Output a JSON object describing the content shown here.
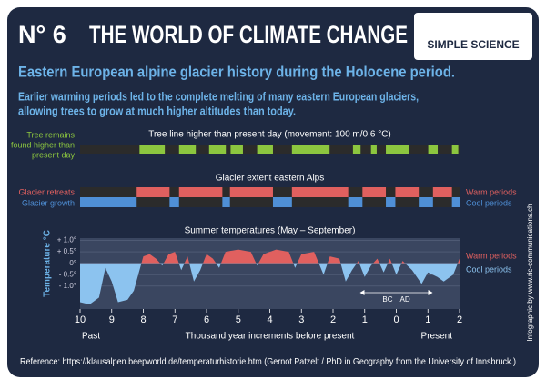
{
  "header": {
    "number": "N° 6",
    "title": "THE WORLD OF CLIMATE CHANGE",
    "logo": "SIMPLE SCIENCE"
  },
  "subtitle": "Eastern European alpine glacier history during the Holocene period.",
  "intro": [
    "Earlier warming periods led to the complete melting of many eastern European glaciers,",
    "allowing trees to grow at much higher altitudes than today."
  ],
  "credit": "Infographic by www.ric-communications.ch",
  "reference": "Reference: https://klausalpen.beepworld.de/temperaturhistorie.htm (Gernot Patzelt / PhD in Geography from the University of Innsbruck.)",
  "chart_data": {
    "type": "area",
    "xlim": [
      0,
      12
    ],
    "xticks": [
      {
        "value": 0,
        "label": "10"
      },
      {
        "value": 1,
        "label": "9"
      },
      {
        "value": 2,
        "label": "8"
      },
      {
        "value": 3,
        "label": "7"
      },
      {
        "value": 4,
        "label": "6"
      },
      {
        "value": 5,
        "label": "5"
      },
      {
        "value": 6,
        "label": "4"
      },
      {
        "value": 7,
        "label": "3"
      },
      {
        "value": 8,
        "label": "2"
      },
      {
        "value": 9,
        "label": "1"
      },
      {
        "value": 10,
        "label": "0"
      },
      {
        "value": 11,
        "label": "1"
      },
      {
        "value": 12,
        "label": "2"
      }
    ],
    "xlabel": "Thousand year increments before present",
    "past": "Past",
    "present": "Present",
    "era": [
      "BC",
      "AD"
    ],
    "tree_line": {
      "title": "Tree line higher than present day (movement: 100 m/0.6 °C)",
      "label": [
        "Tree remains",
        "found higher than",
        "present day"
      ],
      "color": "#8cc63f",
      "intervals": [
        [
          1.88,
          2.68
        ],
        [
          3.13,
          3.66
        ],
        [
          4.08,
          4.61
        ],
        [
          4.76,
          5.15
        ],
        [
          5.6,
          6.1
        ],
        [
          6.7,
          7.89
        ],
        [
          8.63,
          8.87
        ],
        [
          9.2,
          9.38
        ],
        [
          9.67,
          10.39
        ],
        [
          11.01,
          11.31
        ],
        [
          11.76,
          11.96
        ]
      ]
    },
    "glacier": {
      "title": "Glacier extent eastern Alps",
      "retreat_label": "Glacier retreats",
      "growth_label": "Glacier growth",
      "warm": "Warm periods",
      "cool": "Cool periods",
      "retreat_color": "#e0605f",
      "growth_color": "#4f8fd6",
      "retreats": [
        [
          1.79,
          2.83
        ],
        [
          3.13,
          4.5
        ],
        [
          4.74,
          6.1
        ],
        [
          6.7,
          8.48
        ],
        [
          8.93,
          9.67
        ],
        [
          9.97,
          10.71
        ],
        [
          11.16,
          11.76
        ]
      ],
      "growth": [
        [
          0,
          1.79
        ],
        [
          2.83,
          3.13
        ],
        [
          4.5,
          4.74
        ],
        [
          6.1,
          6.7
        ],
        [
          8.48,
          8.93
        ],
        [
          9.67,
          9.97
        ],
        [
          10.71,
          11.16
        ],
        [
          11.76,
          12
        ]
      ]
    },
    "temperature": {
      "title": "Summer temperatures (May – September)",
      "ylabel": "Temperature °C",
      "warm": "Warm periods",
      "cool": "Cool periods",
      "warm_color": "#e0605f",
      "cool_color": "#8cc3ef",
      "ylim": [
        -2.0,
        1.1
      ],
      "yticks": [
        {
          "value": 1.0,
          "label": "+ 1.0°"
        },
        {
          "value": 0.5,
          "label": "+ 0.5°"
        },
        {
          "value": 0,
          "label": "0°"
        },
        {
          "value": -0.5,
          "label": "- 0.5°"
        },
        {
          "value": -1.0,
          "label": "- 1.0°"
        }
      ],
      "x": [
        0,
        0.3,
        0.6,
        0.8,
        1.0,
        1.2,
        1.5,
        1.7,
        1.9,
        2.0,
        2.2,
        2.4,
        2.6,
        2.8,
        3.0,
        3.2,
        3.4,
        3.6,
        3.8,
        4.0,
        4.2,
        4.4,
        4.6,
        5.0,
        5.4,
        5.6,
        5.8,
        6.2,
        6.6,
        6.8,
        7.0,
        7.4,
        7.7,
        7.9,
        8.2,
        8.4,
        8.6,
        8.8,
        9.0,
        9.2,
        9.4,
        9.6,
        9.8,
        10.0,
        10.2,
        10.5,
        10.8,
        11.0,
        11.3,
        11.5,
        11.8,
        12
      ],
      "values": [
        -1.7,
        -1.8,
        -1.5,
        -0.2,
        -0.8,
        -1.7,
        -1.6,
        -1.2,
        -0.2,
        0.3,
        0.4,
        0.2,
        -0.1,
        0.4,
        0.5,
        -0.3,
        0.3,
        -0.8,
        -0.3,
        0.4,
        0.2,
        -0.2,
        0.5,
        0.6,
        0.5,
        -0.1,
        0.4,
        0.6,
        0.5,
        -0.2,
        0.4,
        0.5,
        -0.5,
        0.3,
        0.2,
        -0.8,
        -0.3,
        0.1,
        -0.6,
        -0.1,
        0.2,
        -0.4,
        0.2,
        -0.5,
        0.1,
        -0.3,
        -0.9,
        -0.4,
        -0.6,
        -0.8,
        -0.5,
        0.2
      ]
    }
  }
}
